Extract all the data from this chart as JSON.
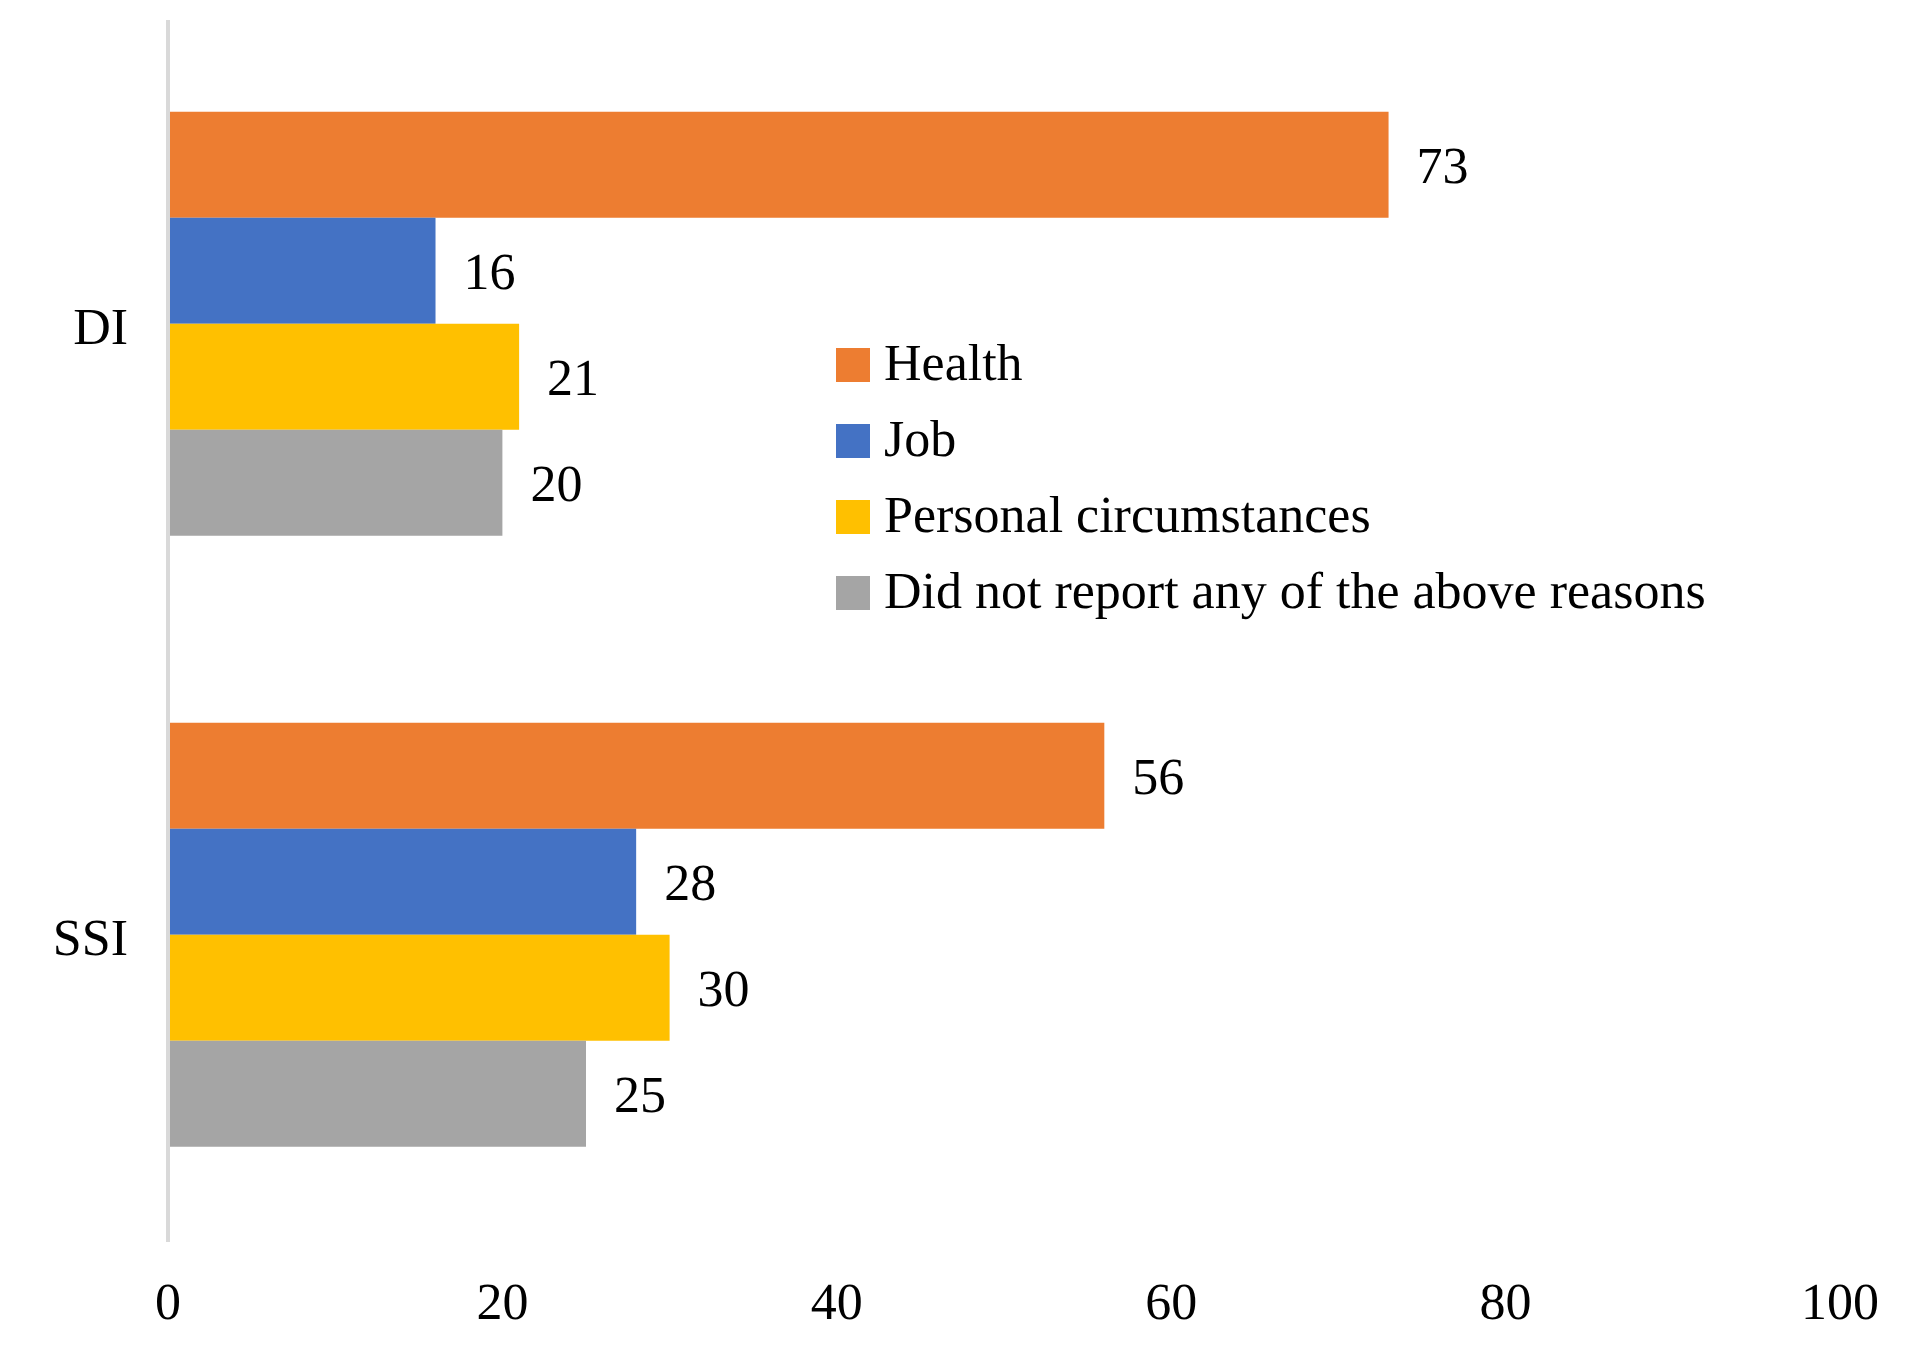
{
  "chart_data": {
    "type": "bar",
    "orientation": "horizontal",
    "categories": [
      "DI",
      "SSI"
    ],
    "series": [
      {
        "name": "Health",
        "color": "#ed7d31",
        "values": [
          73,
          56
        ]
      },
      {
        "name": "Job",
        "color": "#4472c4",
        "values": [
          16,
          28
        ]
      },
      {
        "name": "Personal circumstances",
        "color": "#ffc000",
        "values": [
          21,
          30
        ]
      },
      {
        "name": "Did not report any of the above reasons",
        "color": "#a5a5a5",
        "values": [
          20,
          25
        ]
      }
    ],
    "xlim": [
      0,
      100
    ],
    "xticks": [
      0,
      20,
      40,
      60,
      80,
      100
    ],
    "data_labels": true,
    "grid": false,
    "legend": "right"
  }
}
